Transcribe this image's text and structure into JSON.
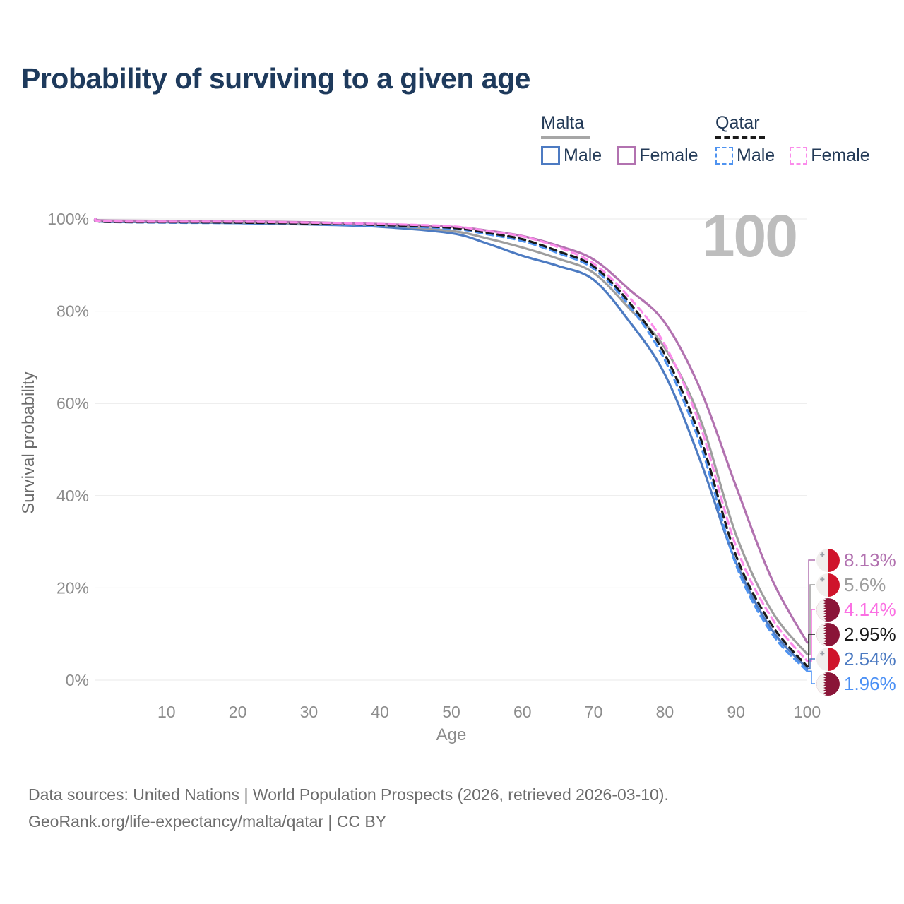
{
  "title": "Probability of surviving to a given age",
  "watermark": "100",
  "legend": {
    "groups": [
      {
        "label": "Malta",
        "line_style": "solid",
        "underline_color": "#a6a6a6",
        "items": [
          {
            "label": "Male",
            "color": "#4d7bc2"
          },
          {
            "label": "Female",
            "color": "#b272b0"
          }
        ]
      },
      {
        "label": "Qatar",
        "line_style": "dashed",
        "underline_color": "#1a1a1a",
        "items": [
          {
            "label": "Male",
            "color": "#4f93f0"
          },
          {
            "label": "Female",
            "color": "#fb8ceb"
          }
        ]
      }
    ]
  },
  "chart_data": {
    "type": "line",
    "title": "Probability of surviving to a given age",
    "xlabel": "Age",
    "ylabel": "Survival probability",
    "xlim": [
      0,
      100
    ],
    "ylim": [
      0,
      100
    ],
    "x_ticks": [
      10,
      20,
      30,
      40,
      50,
      60,
      70,
      80,
      90,
      100
    ],
    "y_ticks": [
      0,
      20,
      40,
      60,
      80,
      100
    ],
    "y_tick_suffix": "%",
    "grid": "horizontal",
    "legend_position": "top-right",
    "ages": [
      0,
      1,
      10,
      20,
      30,
      40,
      50,
      55,
      60,
      65,
      70,
      75,
      80,
      85,
      90,
      95,
      100
    ],
    "series": [
      {
        "name": "Malta Male",
        "country": "Malta",
        "sex": "Male",
        "color": "#4d7bc2",
        "dashed": false,
        "end_value_pct": 2.54,
        "values": [
          100,
          99.4,
          99.3,
          99.1,
          98.8,
          98.3,
          96.9,
          94.7,
          92.0,
          89.8,
          86.8,
          77.8,
          66.3,
          47.5,
          25.5,
          11.0,
          2.54
        ]
      },
      {
        "name": "Malta",
        "country": "Malta",
        "sex": "Both",
        "color": "#9e9e9e",
        "dashed": false,
        "end_value_pct": 5.6,
        "values": [
          100,
          99.5,
          99.4,
          99.2,
          99.0,
          98.6,
          97.4,
          95.8,
          93.8,
          91.4,
          88.3,
          80.6,
          72.0,
          56.5,
          31.5,
          15.0,
          5.6
        ]
      },
      {
        "name": "Malta Female",
        "country": "Malta",
        "sex": "Female",
        "color": "#b272b0",
        "dashed": false,
        "end_value_pct": 8.13,
        "values": [
          100,
          99.7,
          99.6,
          99.5,
          99.3,
          98.9,
          98.3,
          97.5,
          96.3,
          94.2,
          91.2,
          84.7,
          77.5,
          63.0,
          42.0,
          22.0,
          8.13
        ]
      },
      {
        "name": "Qatar Male",
        "country": "Qatar",
        "sex": "Male",
        "color": "#4f93f0",
        "dashed": true,
        "end_value_pct": 1.96,
        "values": [
          100,
          99.4,
          99.2,
          99.1,
          98.9,
          98.5,
          97.9,
          96.7,
          95.2,
          92.6,
          89.2,
          81.2,
          69.4,
          51.0,
          25.0,
          10.2,
          1.96
        ]
      },
      {
        "name": "Qatar",
        "country": "Qatar",
        "sex": "Both",
        "color": "#1a1a1a",
        "dashed": true,
        "end_value_pct": 2.95,
        "values": [
          100,
          99.4,
          99.3,
          99.2,
          99.0,
          98.7,
          98.1,
          97.0,
          95.6,
          93.0,
          89.7,
          81.9,
          70.6,
          52.5,
          27.0,
          12.0,
          2.95
        ]
      },
      {
        "name": "Qatar Female",
        "country": "Qatar",
        "sex": "Female",
        "color": "#fb8ceb",
        "dashed": true,
        "end_value_pct": 4.14,
        "values": [
          100,
          99.5,
          99.4,
          99.4,
          99.2,
          98.9,
          98.4,
          97.4,
          96.2,
          93.9,
          90.3,
          83.0,
          72.7,
          55.0,
          29.0,
          13.5,
          4.14
        ]
      }
    ]
  },
  "end_labels": [
    {
      "value": "8.13%",
      "series": "Malta Female",
      "flag": "malta",
      "color": "#b272b0"
    },
    {
      "value": "5.6%",
      "series": "Malta",
      "flag": "malta",
      "color": "#9e9e9e"
    },
    {
      "value": "4.14%",
      "series": "Qatar Female",
      "flag": "qatar",
      "color": "#fb6fe3"
    },
    {
      "value": "2.95%",
      "series": "Qatar",
      "flag": "qatar",
      "color": "#1a1a1a"
    },
    {
      "value": "2.54%",
      "series": "Malta Male",
      "flag": "malta",
      "color": "#4d7bc2"
    },
    {
      "value": "1.96%",
      "series": "Qatar Male",
      "flag": "qatar",
      "color": "#4b90f5"
    }
  ],
  "footer": {
    "line1": "Data sources: United Nations | World Population Prospects (2026, retrieved 2026-03-10).",
    "line2": "GeoRank.org/life-expectancy/malta/qatar | CC BY"
  }
}
